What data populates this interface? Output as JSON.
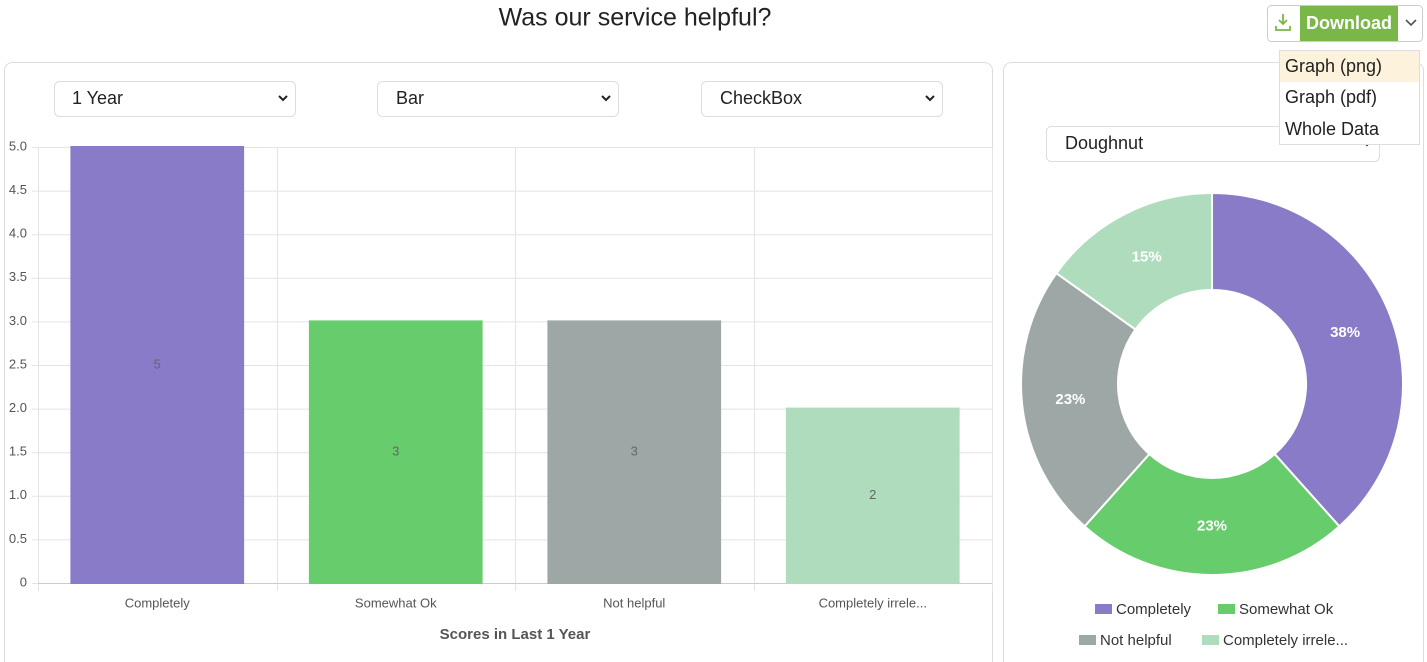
{
  "header": {
    "title": "Was our service helpful?",
    "download": "Download",
    "menu": [
      "Graph (png)",
      "Graph (pdf)",
      "Whole Data"
    ]
  },
  "controls": {
    "period": "1 Year",
    "chart_type": "Bar",
    "question_type": "CheckBox",
    "pie_type": "Doughnut"
  },
  "chart_data": [
    {
      "type": "bar",
      "xlabel": "Scores in Last 1 Year",
      "categories": [
        "Completely",
        "Somewhat Ok",
        "Not helpful",
        "Completely irrele..."
      ],
      "values": [
        5,
        3,
        3,
        2
      ],
      "colors": [
        "#8a7bc8",
        "#66cc6c",
        "#9da8a6",
        "#aedcbd"
      ],
      "ylim": [
        0,
        5
      ],
      "yticks": [
        0,
        0.5,
        {
          "value": 1,
          "label": "1.0"
        },
        1.5,
        {
          "value": 2,
          "label": "2.0"
        },
        2.5,
        {
          "value": 3,
          "label": "3.0"
        },
        3.5,
        {
          "value": 4,
          "label": "4.0"
        },
        4.5,
        {
          "value": 5,
          "label": "5.0"
        }
      ],
      "grid": true
    },
    {
      "type": "doughnut",
      "categories": [
        "Completely",
        "Somewhat Ok",
        "Not helpful",
        "Completely irrele..."
      ],
      "values": [
        38,
        23,
        23,
        15
      ],
      "value_labels": [
        "38%",
        "23%",
        "23%",
        "15%"
      ],
      "colors": [
        "#8a7bc8",
        "#66cc6c",
        "#9da8a6",
        "#aedcbd"
      ],
      "legend": "bottom"
    }
  ]
}
